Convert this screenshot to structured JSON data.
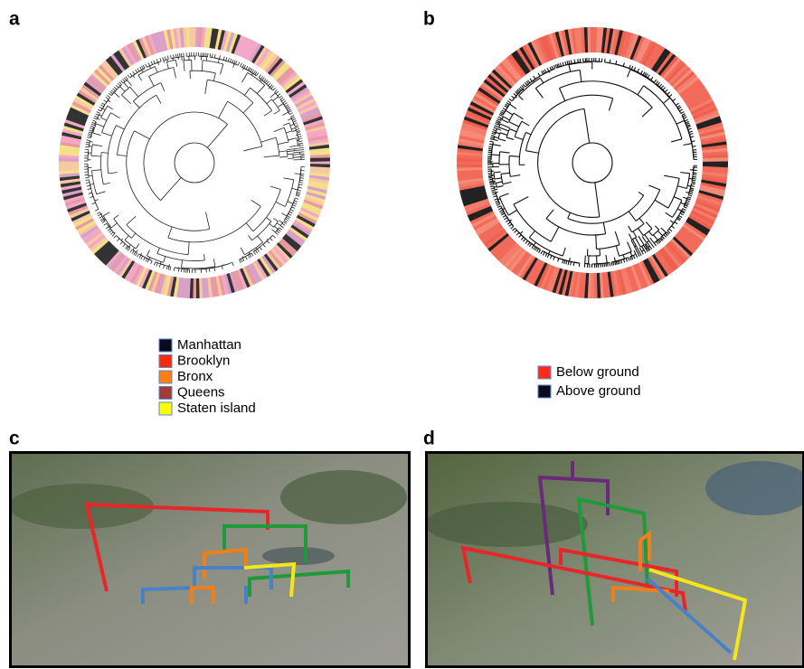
{
  "panels": {
    "a": "a",
    "b": "b",
    "c": "c",
    "d": "d"
  },
  "legend_a": [
    {
      "label": "Manhattan",
      "color": "#0a0a1a"
    },
    {
      "label": "Brooklyn",
      "color": "#ff2a00"
    },
    {
      "label": "Bronx",
      "color": "#ff7f10"
    },
    {
      "label": "Queens",
      "color": "#a23a36"
    },
    {
      "label": "Staten island",
      "color": "#ffff00"
    }
  ],
  "legend_b": [
    {
      "label": "Below ground",
      "color": "#ff2a1a"
    },
    {
      "label": "Above ground",
      "color": "#0a0a1a"
    }
  ]
}
